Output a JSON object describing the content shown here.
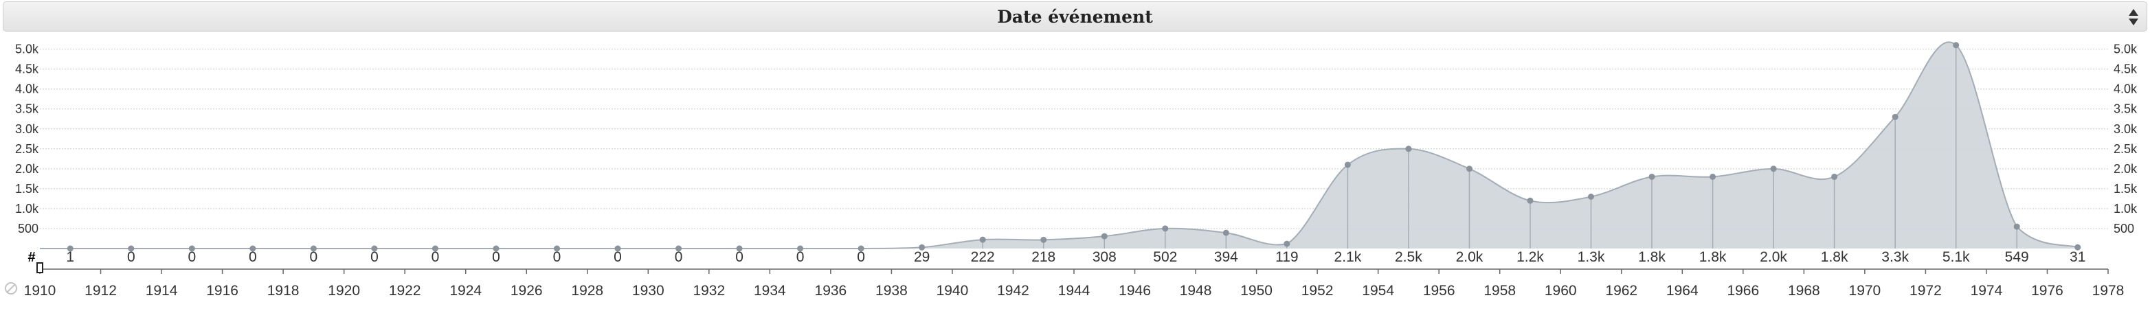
{
  "header": {
    "title": "Date événement"
  },
  "icons": {
    "sort": "sort-updown-icon",
    "reset": "reset-no-icon",
    "handle": "range-handle-icon"
  },
  "colors": {
    "area_fill": "#cfd5da",
    "area_stroke": "#a4adb5",
    "point": "#8a939c",
    "grid": "#cccccc",
    "text": "#333333"
  },
  "chart_data": {
    "type": "area",
    "title": "Date événement",
    "count_label": "#",
    "x": [
      1911,
      1913,
      1915,
      1917,
      1919,
      1921,
      1923,
      1925,
      1927,
      1929,
      1931,
      1933,
      1935,
      1937,
      1939,
      1941,
      1943,
      1945,
      1947,
      1949,
      1951,
      1953,
      1955,
      1957,
      1959,
      1961,
      1963,
      1965,
      1967,
      1969,
      1971,
      1973,
      1975,
      1977
    ],
    "values": [
      1,
      0,
      0,
      0,
      0,
      0,
      0,
      0,
      0,
      0,
      0,
      0,
      0,
      0,
      29,
      222,
      218,
      308,
      502,
      394,
      119,
      2100,
      2500,
      2000,
      1200,
      1300,
      1800,
      1800,
      2000,
      1800,
      3300,
      5100,
      549,
      31
    ],
    "value_labels": [
      "1",
      "0",
      "0",
      "0",
      "0",
      "0",
      "0",
      "0",
      "0",
      "0",
      "0",
      "0",
      "0",
      "0",
      "29",
      "222",
      "218",
      "308",
      "502",
      "394",
      "119",
      "2.1k",
      "2.5k",
      "2.0k",
      "1.2k",
      "1.3k",
      "1.8k",
      "1.8k",
      "2.0k",
      "1.8k",
      "3.3k",
      "5.1k",
      "549",
      "31"
    ],
    "xlim": [
      1910,
      1978
    ],
    "x_ticks": [
      "1910",
      "1912",
      "1914",
      "1916",
      "1918",
      "1920",
      "1922",
      "1924",
      "1926",
      "1928",
      "1930",
      "1932",
      "1934",
      "1936",
      "1938",
      "1940",
      "1942",
      "1944",
      "1946",
      "1948",
      "1950",
      "1952",
      "1954",
      "1956",
      "1958",
      "1960",
      "1962",
      "1964",
      "1966",
      "1968",
      "1970",
      "1972",
      "1974",
      "1976",
      "1978"
    ],
    "ylim": [
      0,
      5200
    ],
    "y_ticks": [
      500,
      1000,
      1500,
      2000,
      2500,
      3000,
      3500,
      4000,
      4500,
      5000
    ],
    "y_tick_labels": [
      "500",
      "1.0k",
      "1.5k",
      "2.0k",
      "2.5k",
      "3.0k",
      "3.5k",
      "4.0k",
      "4.5k",
      "5.0k"
    ],
    "grid": true,
    "legend": "none"
  }
}
